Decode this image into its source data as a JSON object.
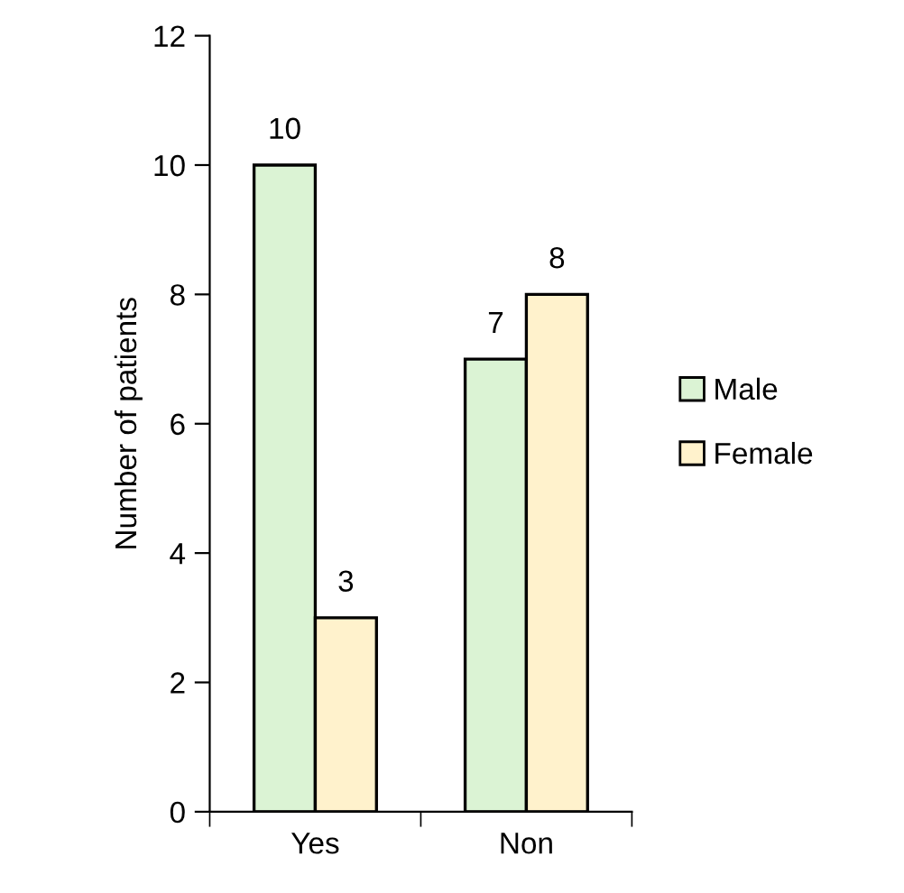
{
  "chart_data": {
    "type": "bar",
    "ylabel": "Number of patients",
    "categories": [
      "Yes",
      "Non"
    ],
    "series": [
      {
        "name": "Male",
        "color": "#dbf3d4",
        "values": [
          10,
          7
        ]
      },
      {
        "name": "Female",
        "color": "#fff2cc",
        "values": [
          3,
          8
        ]
      }
    ],
    "ylim": [
      0,
      12
    ],
    "yticks": [
      0,
      2,
      4,
      6,
      8,
      10,
      12
    ],
    "data_labels": true,
    "legend": "right",
    "grid": false
  }
}
